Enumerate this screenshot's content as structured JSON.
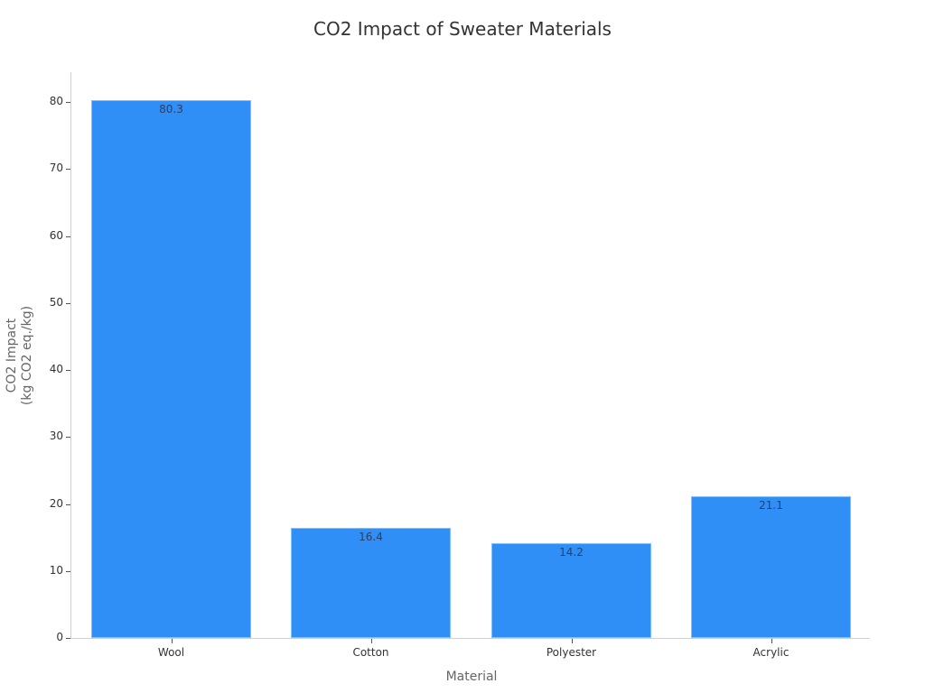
{
  "chart_data": {
    "type": "bar",
    "title": "CO2 Impact of Sweater Materials",
    "xlabel": "Material",
    "ylabel_line1": "CO2 Impact",
    "ylabel_line2": "(kg CO2 eq./kg)",
    "categories": [
      "Wool",
      "Cotton",
      "Polyester",
      "Acrylic"
    ],
    "values": [
      80.3,
      16.4,
      14.2,
      21.1
    ],
    "value_labels": [
      "80.3",
      "16.4",
      "14.2",
      "21.1"
    ],
    "yticks": [
      0,
      10,
      20,
      30,
      40,
      50,
      60,
      70,
      80
    ],
    "ylim": [
      0,
      84.5
    ],
    "grid": false,
    "legend": null,
    "bar_color": "#2f8ff7"
  }
}
